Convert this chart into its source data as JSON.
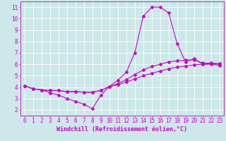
{
  "background_color": "#cce8e8",
  "grid_color": "#ffffff",
  "line_color": "#cc00cc",
  "xlabel": "Windchill (Refroidissement éolien,°C)",
  "xlim": [
    -0.5,
    23.5
  ],
  "ylim": [
    1.5,
    11.5
  ],
  "xticks": [
    0,
    1,
    2,
    3,
    4,
    5,
    6,
    7,
    8,
    9,
    10,
    11,
    12,
    13,
    14,
    15,
    16,
    17,
    18,
    19,
    20,
    21,
    22,
    23
  ],
  "yticks": [
    2,
    3,
    4,
    5,
    6,
    7,
    8,
    9,
    10,
    11
  ],
  "line1_x": [
    0,
    1,
    2,
    3,
    4,
    5,
    6,
    7,
    8,
    9,
    10,
    11,
    12,
    13,
    14,
    15,
    16,
    17,
    18,
    19,
    20,
    21,
    22,
    23
  ],
  "line1_y": [
    4.1,
    3.85,
    3.75,
    3.5,
    3.3,
    3.0,
    2.75,
    2.5,
    2.1,
    3.3,
    4.05,
    4.6,
    5.3,
    7.0,
    10.2,
    11.0,
    11.0,
    10.5,
    7.8,
    6.2,
    6.5,
    6.0,
    6.0,
    5.9
  ],
  "line2_x": [
    0,
    1,
    2,
    3,
    4,
    5,
    6,
    7,
    8,
    9,
    10,
    11,
    12,
    13,
    14,
    15,
    16,
    17,
    18,
    19,
    20,
    21,
    22,
    23
  ],
  "line2_y": [
    4.1,
    3.85,
    3.75,
    3.7,
    3.7,
    3.6,
    3.6,
    3.55,
    3.55,
    3.7,
    4.05,
    4.3,
    4.65,
    5.1,
    5.5,
    5.8,
    6.0,
    6.2,
    6.3,
    6.35,
    6.4,
    6.1,
    6.1,
    6.05
  ],
  "line3_x": [
    0,
    1,
    2,
    3,
    4,
    5,
    6,
    7,
    8,
    9,
    10,
    11,
    12,
    13,
    14,
    15,
    16,
    17,
    18,
    19,
    20,
    21,
    22,
    23
  ],
  "line3_y": [
    4.1,
    3.85,
    3.75,
    3.7,
    3.7,
    3.6,
    3.6,
    3.55,
    3.55,
    3.7,
    4.05,
    4.2,
    4.45,
    4.7,
    5.0,
    5.2,
    5.4,
    5.6,
    5.75,
    5.85,
    5.95,
    6.0,
    6.05,
    6.0
  ],
  "linewidth": 0.8,
  "markersize": 2.0,
  "tick_fontsize": 5.5,
  "xlabel_fontsize": 6.0
}
